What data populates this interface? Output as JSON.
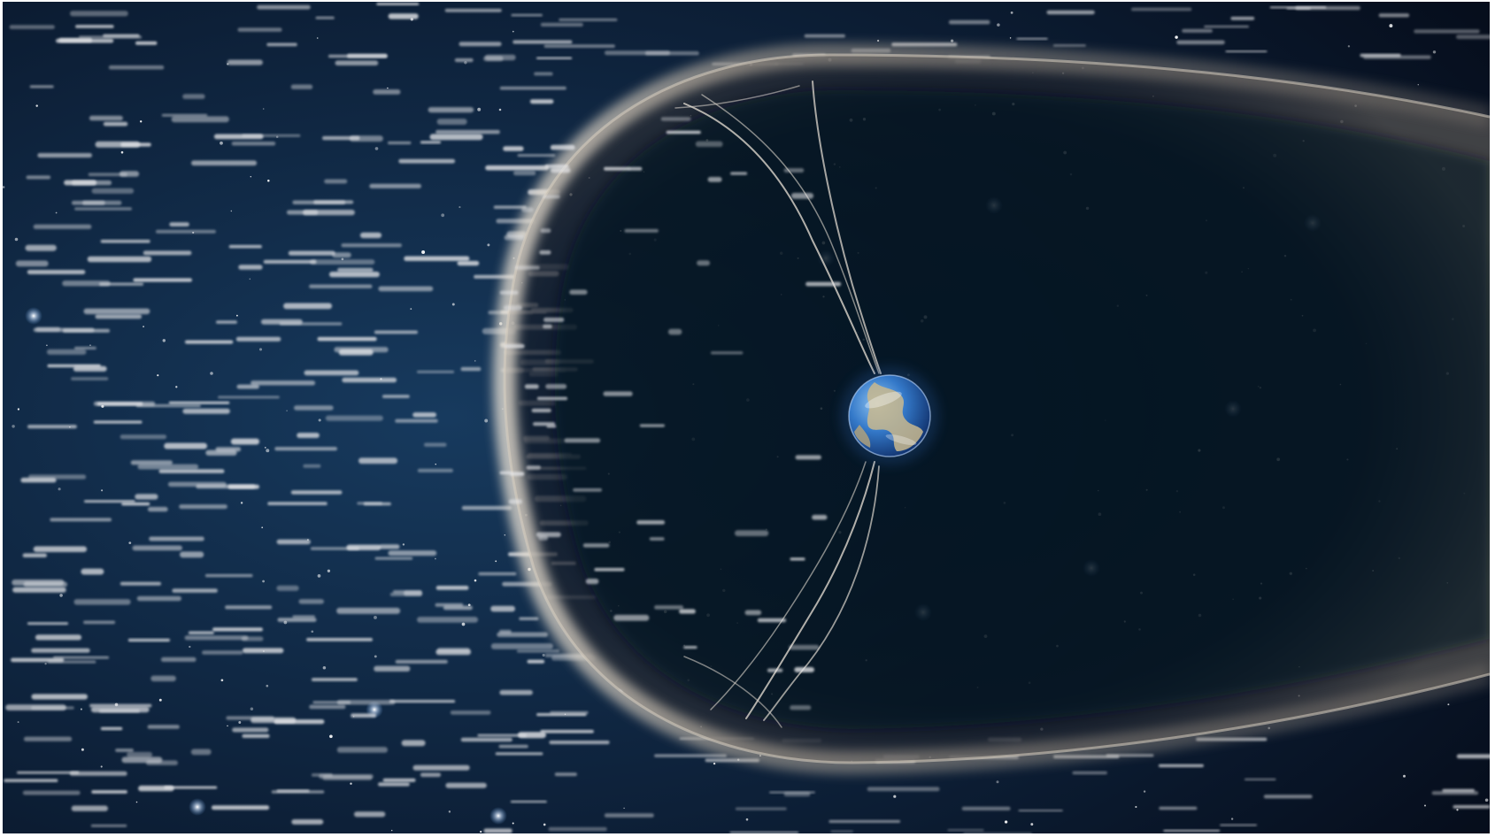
{
  "scene": {
    "subject": "earth-magnetosphere-in-solar-wind",
    "colors": {
      "space_center": "#143354",
      "space_edge": "#050b18",
      "magnetosphere_rim": "#d8cdbf",
      "magnetosphere_body": "#141a26",
      "solar_wind_streak": "#e4e6ea",
      "star": "#ffffff",
      "earth_ocean": "#2f6fc4",
      "earth_land": "#c9b98e"
    }
  }
}
